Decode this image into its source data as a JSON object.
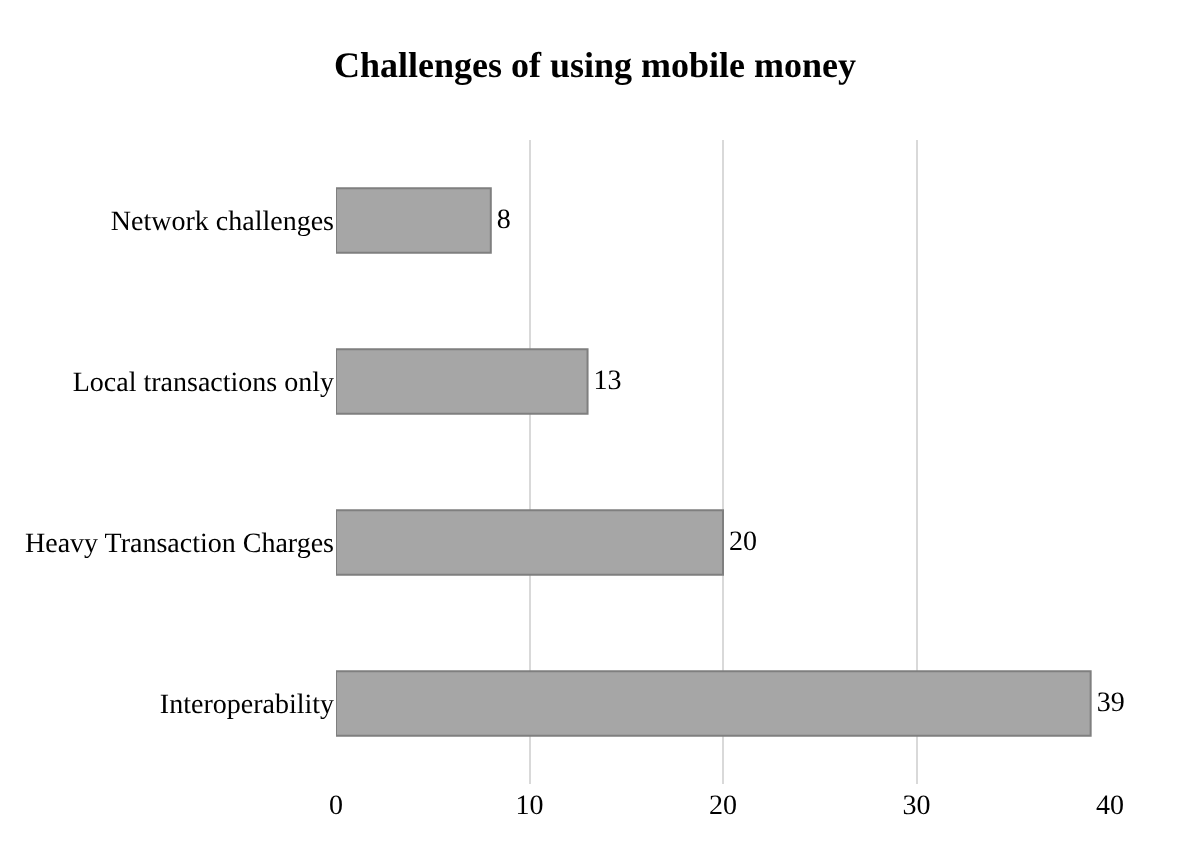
{
  "chart_data": {
    "type": "bar",
    "orientation": "horizontal",
    "title": "Challenges of using mobile money",
    "categories": [
      "Network challenges",
      "Local transactions only",
      "Heavy Transaction Charges",
      "Interoperability"
    ],
    "values": [
      8,
      13,
      20,
      39
    ],
    "color": "#a6a6a6",
    "xlim": [
      0,
      40
    ],
    "xticks": [
      0,
      10,
      20,
      30,
      40
    ],
    "grid": "x",
    "data_labels": true,
    "legend": false
  }
}
